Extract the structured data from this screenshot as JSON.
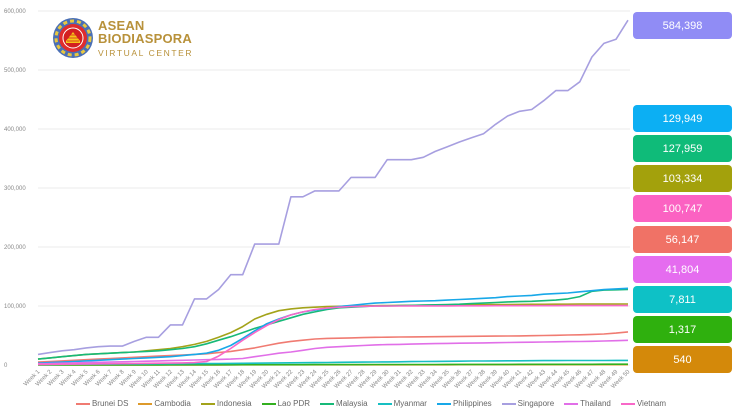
{
  "logo": {
    "line1": "ASEAN",
    "line2": "BIODIASPORA",
    "line3": "VIRTUAL CENTER"
  },
  "chart_data": {
    "type": "line",
    "title": "",
    "xlabel": "",
    "ylabel": "",
    "ylim": [
      0,
      600000
    ],
    "yticks": [
      0,
      100000,
      200000,
      300000,
      400000,
      500000,
      600000
    ],
    "ytick_labels": [
      "0",
      "100,000",
      "200,000",
      "300,000",
      "400,000",
      "500,000",
      "600,000"
    ],
    "grid": true,
    "legend_position": "bottom",
    "x": [
      "Week 1",
      "Week 2",
      "Week 3",
      "Week 4",
      "Week 5",
      "Week 6",
      "Week 7",
      "Week 8",
      "Week 9",
      "Week 10",
      "Week 11",
      "Week 12",
      "Week 13",
      "Week 14",
      "Week 15",
      "Week 16",
      "Week 17",
      "Week 18",
      "Week 19",
      "Week 20",
      "Week 21",
      "Week 22",
      "Week 23",
      "Week 24",
      "Week 25",
      "Week 26",
      "Week 27",
      "Week 28",
      "Week 29",
      "Week 30",
      "Week 31",
      "Week 32",
      "Week 33",
      "Week 34",
      "Week 35",
      "Week 36",
      "Week 37",
      "Week 38",
      "Week 39",
      "Week 40",
      "Week 41",
      "Week 42",
      "Week 43",
      "Week 44",
      "Week 45",
      "Week 46",
      "Week 47",
      "Week 48",
      "Week 49",
      "Week 50"
    ],
    "series": [
      {
        "name": "Brunei DS",
        "color": "#f07b72",
        "final_label": "56,147",
        "badge_color": "#f07266",
        "values": [
          5000,
          6000,
          7000,
          8000,
          9000,
          10000,
          11000,
          12000,
          13000,
          14000,
          15000,
          16000,
          17000,
          18000,
          19000,
          21000,
          23000,
          26000,
          29000,
          33000,
          37000,
          40000,
          42000,
          44000,
          45000,
          45500,
          46000,
          46500,
          47000,
          47200,
          47400,
          47600,
          47800,
          48000,
          48200,
          48400,
          48600,
          48800,
          49000,
          49200,
          49400,
          49600,
          50000,
          50400,
          50800,
          51200,
          51800,
          52500,
          54000,
          56147
        ]
      },
      {
        "name": "Cambodia",
        "color": "#dd9a2b",
        "final_label": "540",
        "badge_color": "#d4890a",
        "values": [
          100,
          110,
          120,
          130,
          140,
          150,
          160,
          170,
          180,
          190,
          200,
          210,
          220,
          230,
          240,
          250,
          260,
          270,
          280,
          290,
          300,
          310,
          320,
          330,
          340,
          350,
          360,
          370,
          380,
          390,
          400,
          405,
          410,
          415,
          420,
          425,
          430,
          435,
          440,
          445,
          450,
          460,
          470,
          480,
          490,
          500,
          510,
          520,
          530,
          540
        ]
      },
      {
        "name": "Indonesia",
        "color": "#a3a31a",
        "final_label": "103,334",
        "badge_color": "#a3a10c",
        "values": [
          10000,
          12000,
          14000,
          16000,
          18000,
          19000,
          20000,
          21000,
          22000,
          24000,
          26000,
          28000,
          31000,
          35000,
          40000,
          47000,
          55000,
          65000,
          78000,
          86000,
          92000,
          95000,
          97000,
          98000,
          99000,
          99500,
          100000,
          100200,
          100500,
          100800,
          101000,
          101200,
          101400,
          101600,
          101800,
          102000,
          102200,
          102400,
          102500,
          102600,
          102700,
          102800,
          102900,
          103000,
          103100,
          103150,
          103200,
          103250,
          103300,
          103334
        ]
      },
      {
        "name": "Lao PDR",
        "color": "#33b020",
        "final_label": "1,317",
        "badge_color": "#2fb00e",
        "values": [
          20,
          40,
          60,
          80,
          100,
          120,
          140,
          160,
          180,
          200,
          230,
          260,
          290,
          320,
          350,
          380,
          410,
          440,
          470,
          500,
          530,
          560,
          590,
          620,
          650,
          680,
          710,
          740,
          770,
          800,
          830,
          860,
          890,
          920,
          950,
          980,
          1010,
          1040,
          1070,
          1100,
          1130,
          1160,
          1180,
          1200,
          1220,
          1240,
          1260,
          1280,
          1300,
          1317
        ]
      },
      {
        "name": "Malaysia",
        "color": "#17b978",
        "final_label": "127,959",
        "badge_color": "#0fbb79",
        "values": [
          10000,
          12000,
          14000,
          16000,
          18000,
          19000,
          20000,
          21000,
          22000,
          23000,
          24000,
          26000,
          28000,
          31000,
          36000,
          42000,
          48000,
          55000,
          62000,
          68000,
          74000,
          80000,
          86000,
          90000,
          94000,
          97000,
          98000,
          99000,
          100000,
          100000,
          100500,
          101000,
          101500,
          102000,
          102500,
          103000,
          104000,
          105000,
          106000,
          107000,
          107500,
          108000,
          109000,
          110000,
          112000,
          116000,
          125000,
          127000,
          127500,
          127959
        ]
      },
      {
        "name": "Myanmar",
        "color": "#16bfc2",
        "final_label": "7,811",
        "badge_color": "#0ec1c6",
        "values": [
          1000,
          1100,
          1200,
          1300,
          1400,
          1500,
          1600,
          1700,
          1800,
          1900,
          2000,
          2100,
          2200,
          2300,
          2400,
          2500,
          2700,
          2900,
          3100,
          3300,
          3500,
          3700,
          3900,
          4100,
          4300,
          4500,
          4700,
          4900,
          5100,
          5300,
          5500,
          5700,
          5900,
          6100,
          6300,
          6500,
          6700,
          6850,
          7000,
          7100,
          7200,
          7300,
          7400,
          7500,
          7550,
          7600,
          7650,
          7700,
          7750,
          7811
        ]
      },
      {
        "name": "Philippines",
        "color": "#18a8e8",
        "final_label": "129,949",
        "badge_color": "#0caff3",
        "values": [
          3000,
          4000,
          5000,
          6000,
          7000,
          8000,
          9000,
          10000,
          11000,
          12000,
          13000,
          14000,
          16000,
          18000,
          20000,
          25000,
          33000,
          45000,
          58000,
          70000,
          78000,
          85000,
          90000,
          93000,
          96000,
          99000,
          101000,
          103000,
          105000,
          106000,
          107000,
          108000,
          108500,
          109000,
          110000,
          111000,
          112000,
          113000,
          114000,
          116000,
          117000,
          118000,
          120000,
          121000,
          122000,
          124000,
          126000,
          128000,
          129000,
          129949
        ]
      },
      {
        "name": "Singapore",
        "color": "#a79fe0",
        "final_label": "584,398",
        "badge_color": "#908cf5",
        "values": [
          18000,
          21000,
          24000,
          26000,
          29000,
          31000,
          32000,
          32000,
          40000,
          47000,
          47000,
          68000,
          68000,
          112000,
          112000,
          128000,
          153000,
          153000,
          205000,
          205000,
          205000,
          285000,
          285000,
          295000,
          295000,
          295000,
          318000,
          318000,
          318000,
          348000,
          348000,
          348000,
          352000,
          362000,
          370000,
          378000,
          385000,
          392000,
          408000,
          422000,
          430000,
          433000,
          448000,
          465000,
          465000,
          480000,
          522000,
          545000,
          552000,
          584398
        ]
      },
      {
        "name": "Thailand",
        "color": "#e16fe8",
        "final_label": "41,804",
        "badge_color": "#e56cef",
        "values": [
          2000,
          2500,
          3000,
          3500,
          4000,
          4500,
          5000,
          5500,
          6000,
          6500,
          7000,
          7500,
          8000,
          8500,
          9000,
          9500,
          10000,
          11000,
          14000,
          17000,
          20000,
          22000,
          25000,
          28000,
          30000,
          31000,
          32000,
          33000,
          34000,
          34500,
          35000,
          35500,
          36000,
          36300,
          36600,
          36900,
          37200,
          37500,
          37800,
          38100,
          38400,
          38700,
          39000,
          39300,
          39600,
          39900,
          40200,
          40600,
          41200,
          41804
        ]
      },
      {
        "name": "Vietnam",
        "color": "#f868c8",
        "final_label": "100,747",
        "badge_color": "#fb62c2",
        "values": [
          1000,
          1200,
          1400,
          1600,
          1800,
          2000,
          2200,
          2400,
          2600,
          2800,
          3000,
          3200,
          3500,
          4000,
          6000,
          15000,
          28000,
          42000,
          55000,
          67000,
          77000,
          85000,
          90000,
          94000,
          96500,
          98000,
          99000,
          99500,
          99800,
          100000,
          100050,
          100100,
          100150,
          100200,
          100250,
          100300,
          100350,
          100400,
          100450,
          100500,
          100520,
          100540,
          100560,
          100580,
          100600,
          100620,
          100650,
          100680,
          100710,
          100747
        ]
      }
    ],
    "badge_order": [
      "Singapore",
      "Philippines",
      "Malaysia",
      "Indonesia",
      "Vietnam",
      "Brunei DS",
      "Thailand",
      "Myanmar",
      "Lao PDR",
      "Cambodia"
    ]
  }
}
